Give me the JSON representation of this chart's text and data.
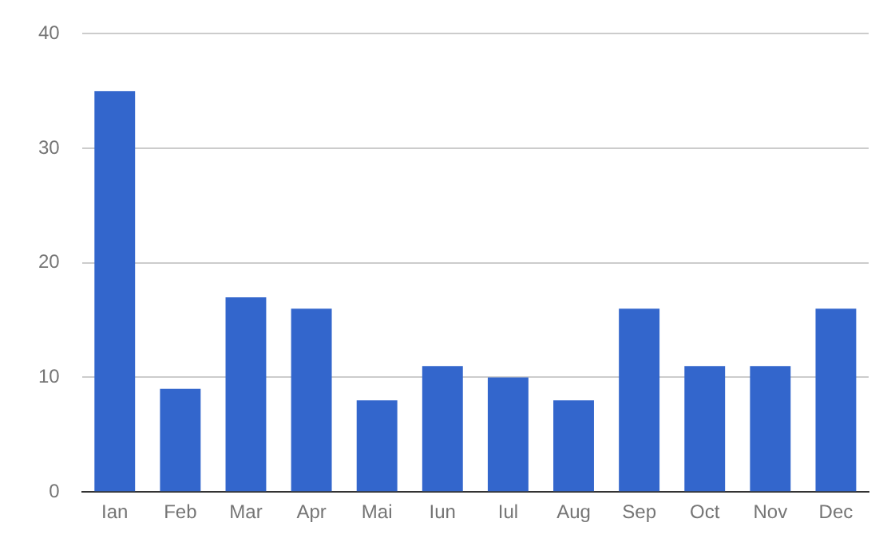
{
  "chart_data": {
    "type": "bar",
    "categories": [
      "Ian",
      "Feb",
      "Mar",
      "Apr",
      "Mai",
      "Iun",
      "Iul",
      "Aug",
      "Sep",
      "Oct",
      "Nov",
      "Dec"
    ],
    "values": [
      35,
      9,
      17,
      16,
      8,
      11,
      10,
      8,
      16,
      11,
      11,
      16
    ],
    "color": "#3366cc",
    "ylim": [
      0,
      40
    ],
    "yticks": [
      0,
      10,
      20,
      30,
      40
    ],
    "grid": "y",
    "legend": false
  }
}
